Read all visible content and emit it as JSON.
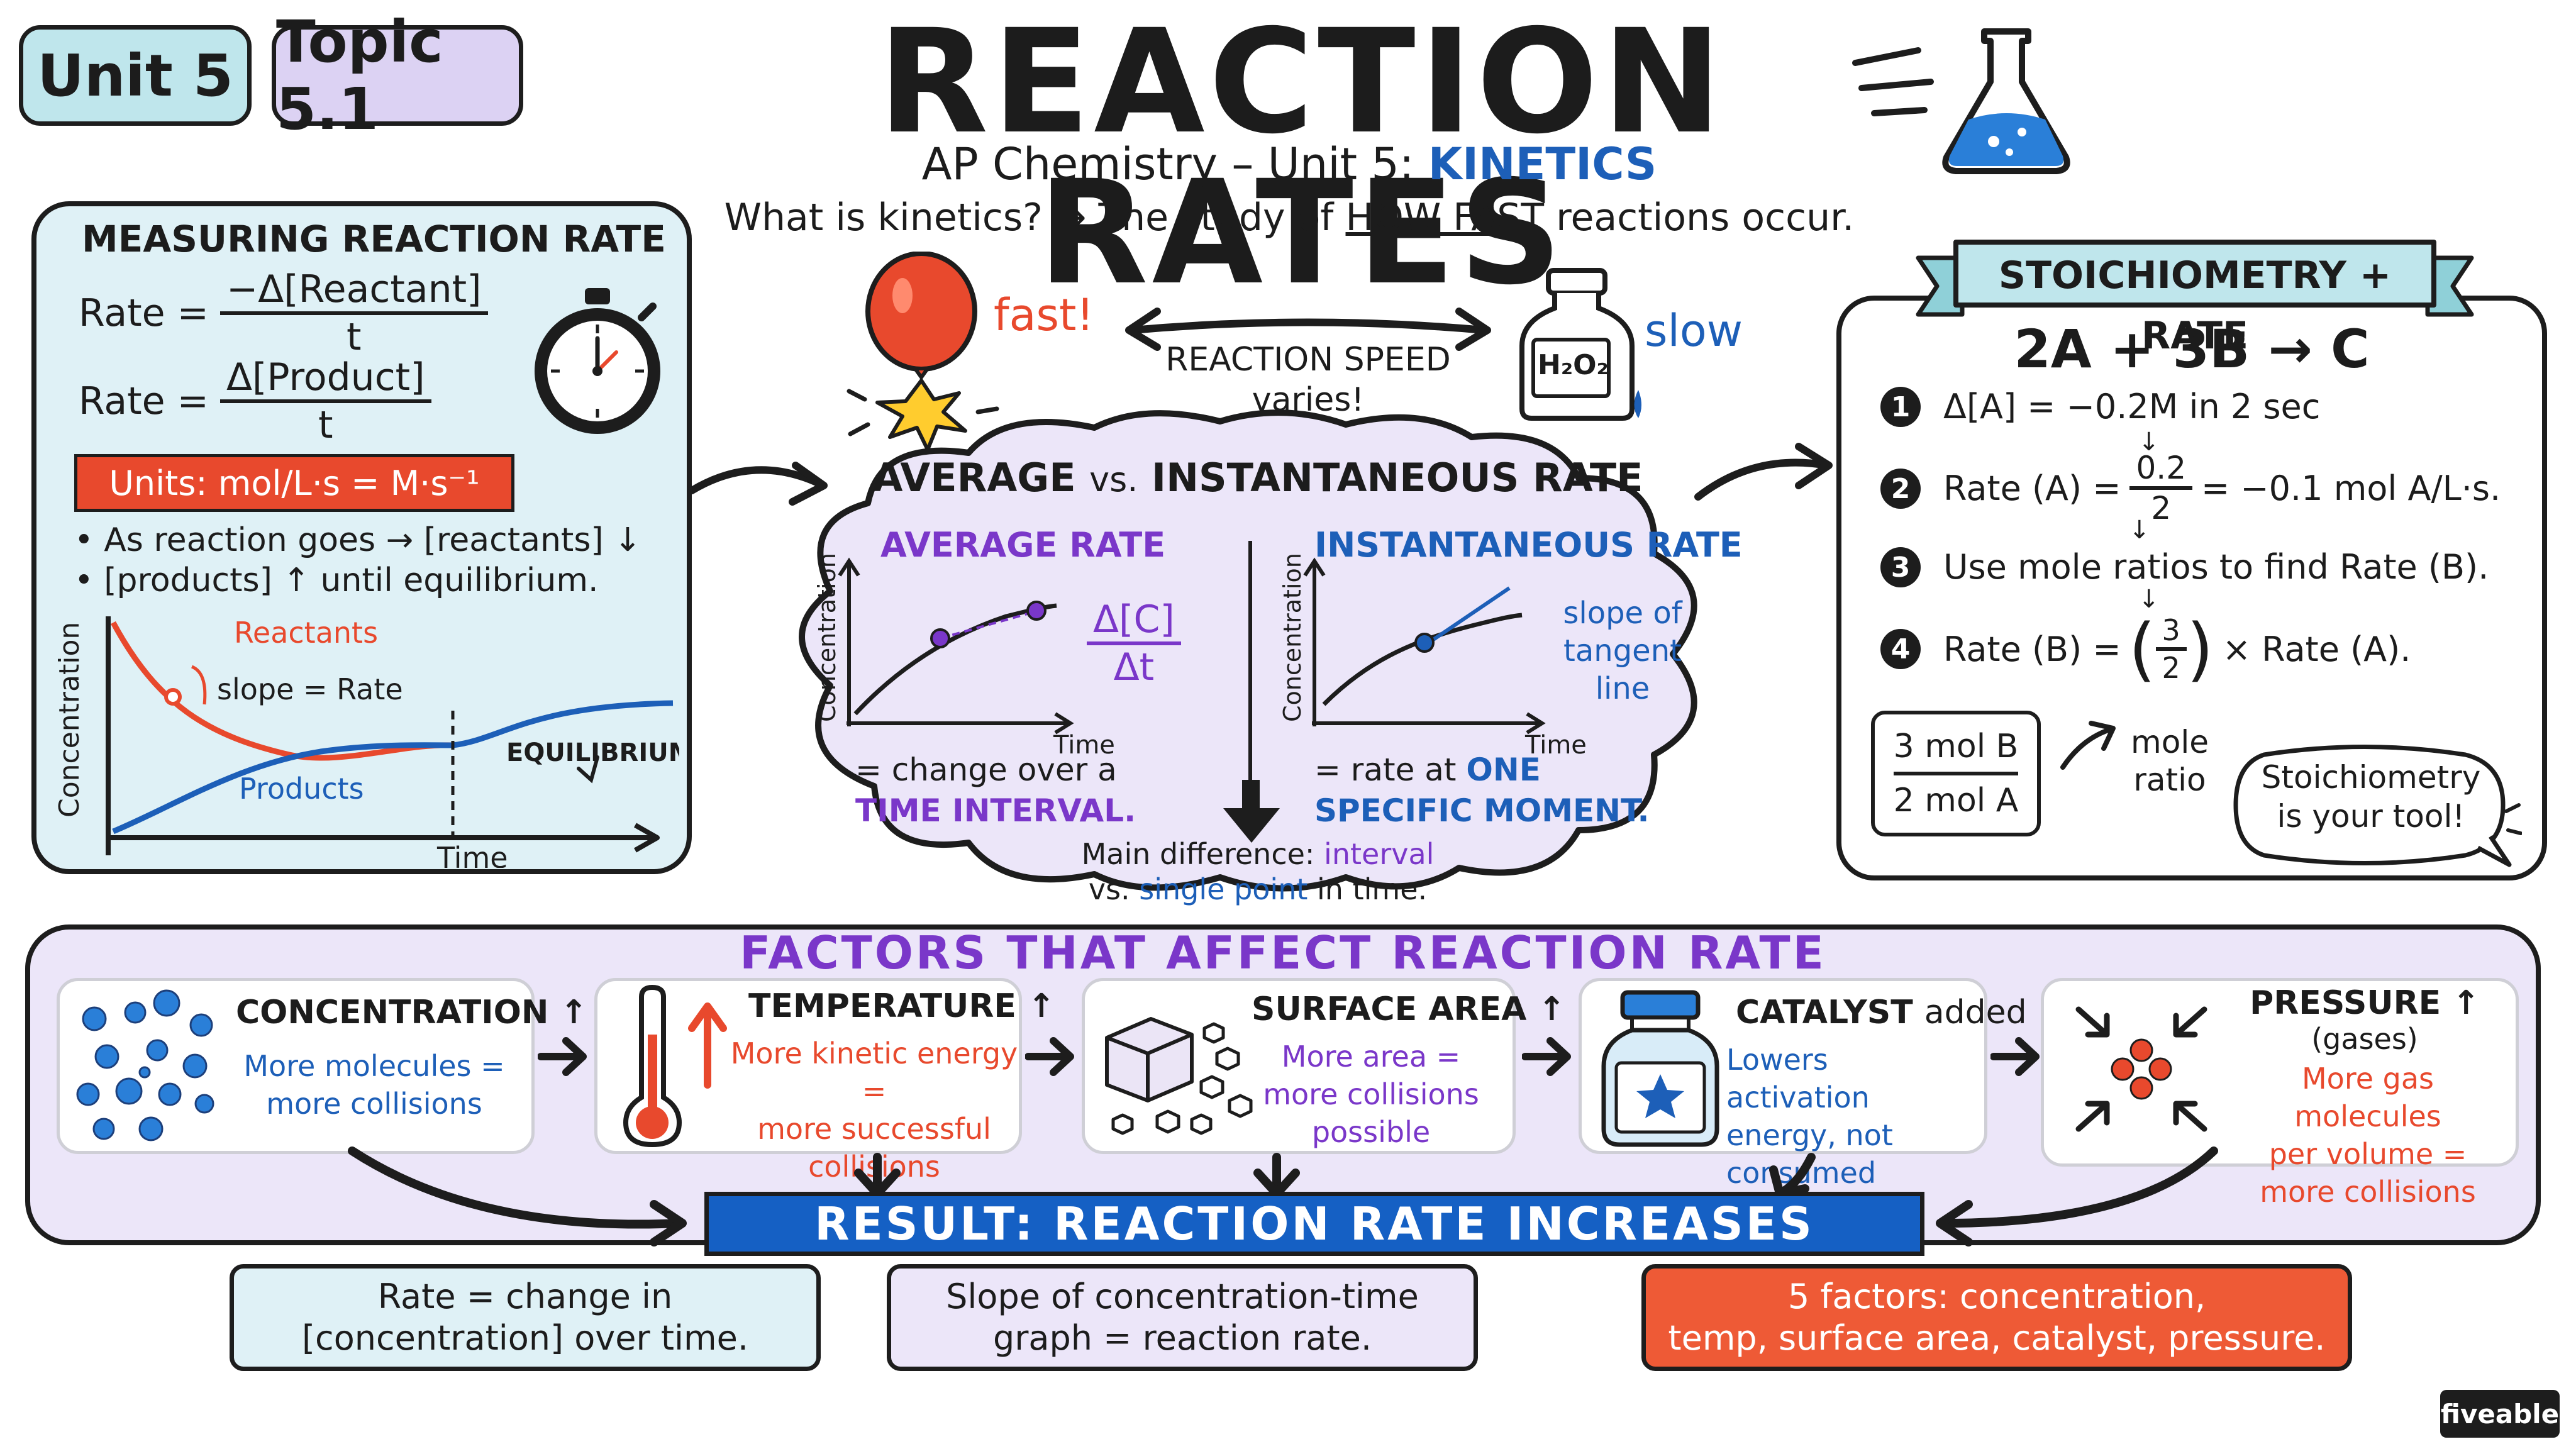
{
  "header": {
    "unit_tag": "Unit 5",
    "topic_tag": "Topic 5.1",
    "title": "REACTION RATES",
    "subtitle_prefix": "AP Chemistry – Unit 5:",
    "subtitle_highlight": "KINETICS",
    "question": "What is kinetics? → The study of",
    "question_emph": "HOW FAST",
    "question_end": "reactions occur."
  },
  "measuring": {
    "title": "MEASURING REACTION RATE",
    "rate_label": "Rate =",
    "rate1_num": "−Δ[Reactant]",
    "rate1_den": "t",
    "rate2_num": "Δ[Product]",
    "rate2_den": "t",
    "units": "Units: mol/L·s = M·s⁻¹",
    "bullet1": "• As reaction goes → [reactants] ↓",
    "bullet2": "• [products] ↑ until equilibrium.",
    "graph": {
      "ylabel": "Concentration",
      "xlabel": "Time",
      "reactants_label": "Reactants",
      "slope_label": "slope = Rate",
      "products_label": "Products",
      "equilibrium_label": "EQUILIBRIUM"
    }
  },
  "speed": {
    "fast_label": "fast!",
    "slow_label": "slow",
    "center_label1": "REACTION SPEED",
    "center_label2": "varies!",
    "bottle_label": "H₂O₂"
  },
  "avg_inst": {
    "title_left": "AVERAGE",
    "title_vs": "vs.",
    "title_right": "INSTANTANEOUS RATE",
    "avg_title": "AVERAGE RATE",
    "avg_formula_num": "Δ[C]",
    "avg_formula_den": "Δt",
    "avg_ylabel": "Concentration",
    "avg_xlabel": "Time",
    "avg_desc1": "= change over a",
    "avg_desc2": "TIME INTERVAL.",
    "inst_title": "INSTANTANEOUS RATE",
    "inst_note1": "slope of",
    "inst_note2": "tangent",
    "inst_note3": "line",
    "inst_ylabel": "Concentration",
    "inst_xlabel": "Time",
    "inst_desc1": "= rate at",
    "inst_desc1_emph": "ONE",
    "inst_desc2": "SPECIFIC MOMENT.",
    "diff_prefix": "Main difference:",
    "diff_word1": "interval",
    "diff_mid": "vs.",
    "diff_word2": "single point",
    "diff_end": "in time."
  },
  "stoich": {
    "banner": "STOICHIOMETRY + RATE",
    "equation": "2A + 3B → C",
    "step1_num": "1",
    "step1": "Δ[A] = −0.2M in 2 sec",
    "step2_num": "2",
    "step2_prefix": "Rate (A) =",
    "step2_num_val": "0.2",
    "step2_den_val": "2",
    "step2_suffix": "= −0.1 mol A/L·s.",
    "step3_num": "3",
    "step3": "Use mole ratios to find Rate (B).",
    "step4_num": "4",
    "step4_prefix": "Rate (B) =",
    "step4_frac_num": "3",
    "step4_frac_den": "2",
    "step4_suffix": "× Rate (A).",
    "ratio_num": "3 mol B",
    "ratio_den": "2 mol A",
    "ratio_label1": "mole",
    "ratio_label2": "ratio",
    "bubble1": "Stoichiometry",
    "bubble2": "is your tool!"
  },
  "factors": {
    "title": "FACTORS THAT AFFECT REACTION RATE",
    "items": [
      {
        "title": "CONCENTRATION ↑",
        "desc": [
          "More molecules =",
          "more collisions"
        ]
      },
      {
        "title": "TEMPERATURE ↑",
        "desc": [
          "More kinetic energy =",
          "more successful",
          "collisions"
        ]
      },
      {
        "title": "SURFACE AREA ↑",
        "desc": [
          "More area =",
          "more collisions",
          "possible"
        ]
      },
      {
        "title": "CATALYST",
        "title_suffix": "added",
        "desc": [
          "Lowers activation",
          "energy, not",
          "consumed"
        ]
      },
      {
        "title": "PRESSURE ↑",
        "subtitle": "(gases)",
        "desc": [
          "More gas molecules",
          "per volume =",
          "more collisions"
        ]
      }
    ],
    "result": "RESULT: REACTION RATE INCREASES"
  },
  "summaries": [
    {
      "line1": "Rate = change in",
      "line2": "[concentration] over time."
    },
    {
      "line1": "Slope of concentration-time",
      "line2": "graph = reaction rate."
    },
    {
      "line1": "5 factors: concentration,",
      "line2": "temp, surface area, catalyst, pressure."
    }
  ],
  "brand": "fiveable",
  "colors": {
    "teal_panel": "#dff1f6",
    "lavender": "#ece6f9",
    "blue": "#1d5fb8",
    "purple": "#7a37c9",
    "red": "#e8492d",
    "result_bar": "#1560c4"
  }
}
